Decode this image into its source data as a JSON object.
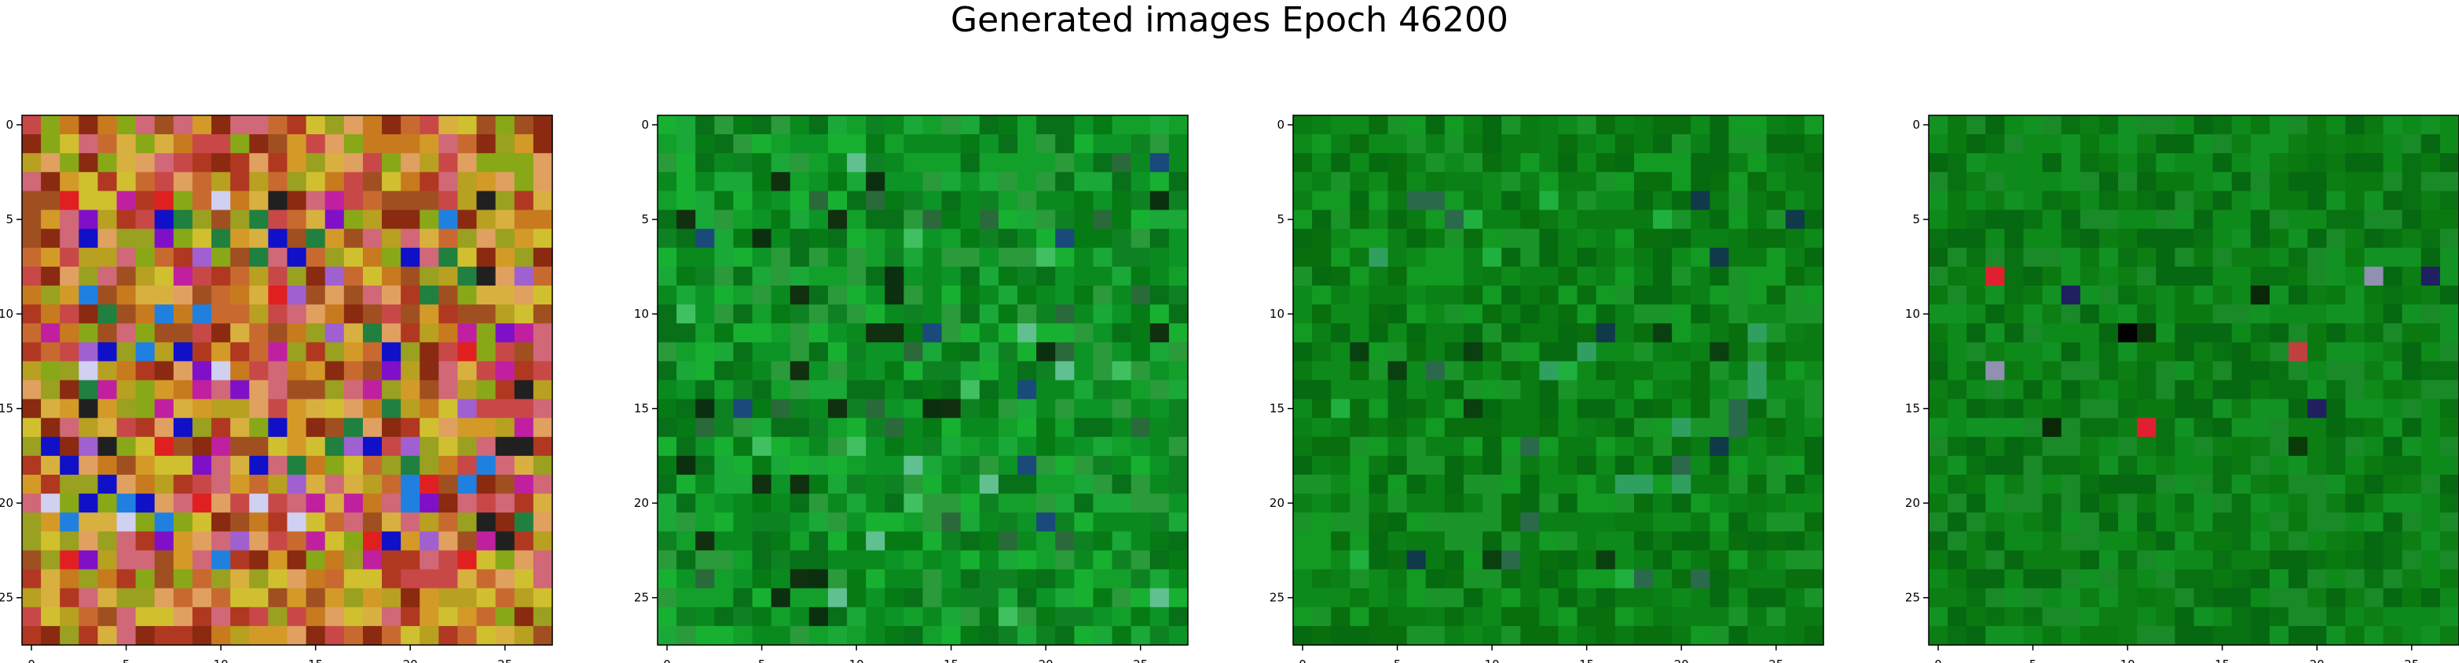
{
  "chart_data": {
    "title": "Generated images Epoch 46200",
    "type": "heatmap",
    "panels": [
      {
        "name": "image-1",
        "grid": [
          28,
          28
        ],
        "palette": [
          "#c87a1e",
          "#d49a28",
          "#b8a020",
          "#c86a30",
          "#a05020",
          "#d8b040",
          "#9aa020",
          "#c84848",
          "#d06878",
          "#b03820",
          "#e0a060",
          "#88a818",
          "#8a2a10",
          "#d0c030"
        ],
        "accent": [
          "#1010c8",
          "#8010c8",
          "#c020a0",
          "#a060d0",
          "#d0d0f0",
          "#202020",
          "#e02020",
          "#208040",
          "#2080e0"
        ],
        "accent_rate": 0.22,
        "accent_region": [
          4,
          23
        ]
      },
      {
        "name": "image-2",
        "grid": [
          28,
          28
        ],
        "palette": [
          "#0a8a1e",
          "#12a02a",
          "#067a14",
          "#1aa838",
          "#0c9426",
          "#2a9a3a",
          "#087018",
          "#18b030",
          "#0e8222"
        ],
        "accent": [
          "#0a3010",
          "#40c060",
          "#2a6a3a",
          "#60c090",
          "#1a4a7a",
          "#103010"
        ],
        "accent_rate": 0.1,
        "accent_region": [
          2,
          26
        ]
      },
      {
        "name": "image-3",
        "grid": [
          28,
          28
        ],
        "palette": [
          "#0a7a12",
          "#0e8a1a",
          "#066a10",
          "#129a22",
          "#086e0e",
          "#1a9428",
          "#0a8016"
        ],
        "accent": [
          "#0a4010",
          "#20b040",
          "#2a6a4a",
          "#103a4a",
          "#30a060"
        ],
        "accent_rate": 0.07,
        "accent_region": [
          4,
          24
        ]
      },
      {
        "name": "image-4",
        "grid": [
          28,
          28
        ],
        "palette": [
          "#0a7a10",
          "#0e8a1a",
          "#066810",
          "#129222",
          "#087212",
          "#1a8a28",
          "#0c7e14"
        ],
        "accent": [
          "#0a3a0a",
          "#082808",
          "#40a060",
          "#c04040",
          "#202060",
          "#000000",
          "#9090b0",
          "#e02030"
        ],
        "accent_rate": 0.06,
        "accent_region": [
          8,
          17
        ]
      }
    ],
    "x_ticks": [
      0,
      5,
      10,
      15,
      20,
      25
    ],
    "y_ticks": [
      0,
      5,
      10,
      15,
      20,
      25
    ],
    "xlim": [
      -0.5,
      27.5
    ],
    "ylim": [
      27.5,
      -0.5
    ]
  }
}
